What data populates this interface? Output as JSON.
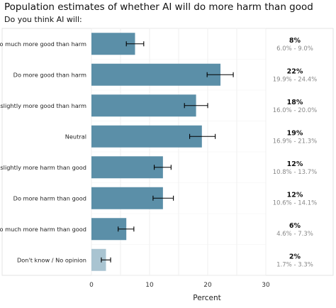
{
  "title": "Population estimates of whether AI will do more harm than good",
  "subtitle": "Do you think AI will:",
  "chart_data": {
    "type": "bar",
    "orientation": "horizontal",
    "title": "Population estimates of whether AI will do more harm than good",
    "subtitle": "Do you think AI will:",
    "xlabel": "Percent",
    "ylabel": "",
    "xlim": [
      0,
      30
    ],
    "xticks": [
      "0",
      "10",
      "20",
      "30"
    ],
    "grid": true,
    "categories": [
      "Do much more good than harm",
      "Do more good than harm",
      "Do slightly more good than harm",
      "Neutral",
      "Do slightly more harm than good",
      "Do more harm than good",
      "Do much more harm than good",
      "Don't know / No opinion"
    ],
    "values": [
      7.5,
      22.2,
      18.0,
      19.0,
      12.3,
      12.3,
      6.0,
      2.5
    ],
    "ci_low": [
      6.0,
      19.9,
      16.0,
      16.9,
      10.8,
      10.6,
      4.6,
      1.7
    ],
    "ci_high": [
      9.0,
      24.4,
      20.0,
      21.3,
      13.7,
      14.1,
      7.3,
      3.3
    ],
    "labels": [
      "8%",
      "22%",
      "18%",
      "19%",
      "12%",
      "12%",
      "6%",
      "2%"
    ],
    "ci_labels": [
      "6.0% - 9.0%",
      "19.9% - 24.4%",
      "16.0% - 20.0%",
      "16.9% - 21.3%",
      "10.8% - 13.7%",
      "10.6% - 14.1%",
      "4.6% - 7.3%",
      "1.7% - 3.3%"
    ],
    "bar_color": "#5b8fa8",
    "muted_bar_color": "#a9c4d1"
  }
}
